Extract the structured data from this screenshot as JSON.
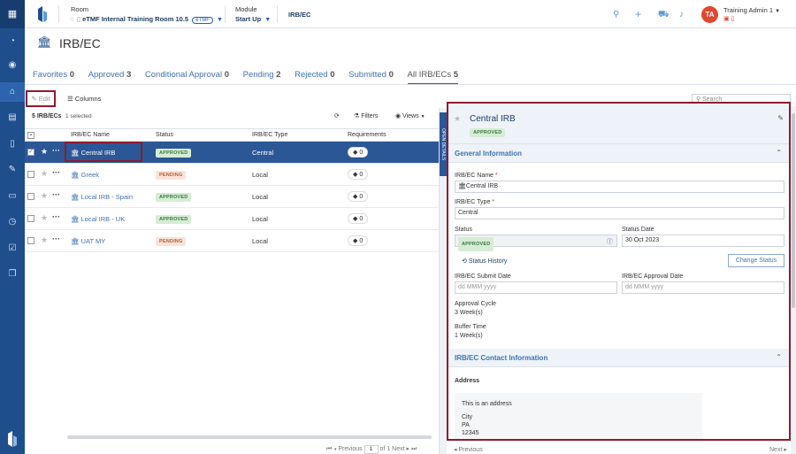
{
  "header": {
    "room_label": "Room",
    "room_value": "eTMF Internal Training Room 10.5",
    "room_tag": "eTMF",
    "module_label": "Module",
    "module_value": "Start Up",
    "breadcrumb": "IRB/EC",
    "user_initials": "TA",
    "user_name": "Training Admin 1"
  },
  "page": {
    "title": "IRB/EC"
  },
  "tabs": [
    {
      "label": "Favorites",
      "count": "0"
    },
    {
      "label": "Approved",
      "count": "3"
    },
    {
      "label": "Conditional Approval",
      "count": "0"
    },
    {
      "label": "Pending",
      "count": "2"
    },
    {
      "label": "Rejected",
      "count": "0"
    },
    {
      "label": "Submitted",
      "count": "0"
    },
    {
      "label": "All IRB/ECs",
      "count": "5"
    }
  ],
  "toolbar": {
    "edit_label": "Edit",
    "columns_label": "Columns",
    "filters_label": "Filters",
    "views_label": "Views",
    "search_placeholder": "Search"
  },
  "table": {
    "count_label": "5 IRB/ECs",
    "selected_label": "1 selected",
    "columns": [
      "IRB/EC Name",
      "Status",
      "IRB/EC Type",
      "Requirements"
    ],
    "rows": [
      {
        "name": "Central IRB",
        "status": "APPROVED",
        "type": "Central",
        "requirements": "0",
        "selected": true
      },
      {
        "name": "Greek",
        "status": "PENDING",
        "type": "Local",
        "requirements": "0",
        "selected": false
      },
      {
        "name": "Local IRB - Spain",
        "status": "APPROVED",
        "type": "Local",
        "requirements": "0",
        "selected": false
      },
      {
        "name": "Local IRB - UK",
        "status": "APPROVED",
        "type": "Local",
        "requirements": "0",
        "selected": false
      },
      {
        "name": "UAT MY",
        "status": "PENDING",
        "type": "Local",
        "requirements": "0",
        "selected": false
      }
    ]
  },
  "pager": {
    "previous": "Previous",
    "page": "1",
    "of": "of 1",
    "next": "Next"
  },
  "splitter": {
    "open_label": "OPEN",
    "details_label": "DETAILS"
  },
  "detail": {
    "title": "Central IRB",
    "status_badge": "APPROVED",
    "general_section": "General Information",
    "name_label": "IRB/EC Name",
    "name_value": "Central IRB",
    "type_label": "IRB/EC Type",
    "type_value": "Central",
    "status_label": "Status",
    "status_value": "APPROVED",
    "status_date_label": "Status Date",
    "status_date_value": "30 Oct 2023",
    "status_history": "Status History",
    "change_status": "Change Status",
    "submit_date_label": "IRB/EC Submit Date",
    "submit_date_placeholder": "dd MMM yyyy",
    "approval_date_label": "IRB/EC Approval Date",
    "approval_date_placeholder": "dd MMM yyyy",
    "approval_cycle_label": "Approval Cycle",
    "approval_cycle_value": "3 Week(s)",
    "buffer_time_label": "Buffer Time",
    "buffer_time_value": "1 Week(s)",
    "contact_section": "IRB/EC Contact Information",
    "address_label": "Address",
    "address_line1": "This is an address",
    "address_city": "City",
    "address_state": "PA",
    "address_zip": "12345"
  },
  "detail_pager": {
    "previous": "Previous",
    "next": "Next"
  },
  "colors": {
    "rail": "#1f4e8c",
    "accent": "#3f73b0",
    "highlight": "#8e1b2e",
    "selected_row": "#2b5797"
  }
}
